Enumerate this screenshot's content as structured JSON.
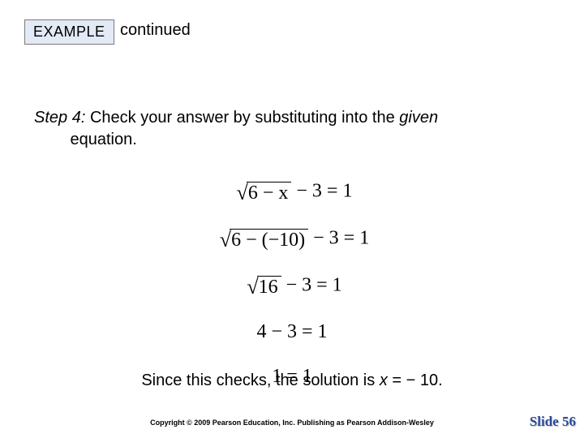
{
  "badge": {
    "label": "EXAMPLE"
  },
  "continued": "continued",
  "step": {
    "prefix": "Step 4:",
    "text_a": " Check your answer by substituting into the ",
    "given": "given",
    "text_b": " equation."
  },
  "equations": {
    "eq1_rad": "6 − x",
    "eq1_tail": " − 3 = 1",
    "eq2_rad": "6 − (−10)",
    "eq2_tail": " − 3 = 1",
    "eq3_rad": "16",
    "eq3_tail": " − 3 = 1",
    "eq4": "4 − 3 = 1",
    "eq5": "1 = 1"
  },
  "conclusion": {
    "a": "Since this checks, the solution is ",
    "var": "x",
    "b": " = − 10."
  },
  "copyright": "Copyright © 2009 Pearson Education, Inc.  Publishing as Pearson Addison-Wesley",
  "slide": "Slide 56",
  "colors": {
    "badge_bg": "#e2eaf6",
    "badge_border": "#7a7a7a",
    "slide_color": "#2b4aa0"
  }
}
